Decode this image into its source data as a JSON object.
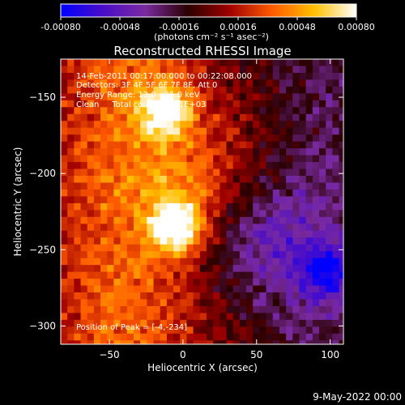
{
  "chart_data": {
    "type": "heatmap",
    "title": "Reconstructed RHESSI Image",
    "xlabel": "Heliocentric X (arcsec)",
    "ylabel": "Heliocentric Y (arcsec)",
    "xlim": [
      -83,
      109
    ],
    "ylim": [
      -312,
      -125
    ],
    "x_ticks": [
      -50,
      0,
      50,
      100
    ],
    "y_ticks": [
      -150,
      -200,
      -250,
      -300
    ],
    "colorbar": {
      "min": -0.0008,
      "max": 0.0008,
      "ticks": [
        "-0.00080",
        "-0.00048",
        "-0.00016",
        "0.00016",
        "0.00048",
        "0.00080"
      ],
      "units": "(photons cm⁻² s⁻¹ asec⁻²)",
      "colors": [
        "#0000ff",
        "#4a0dc8",
        "#7a2aa0",
        "#2a0000",
        "#a00000",
        "#ff5a00",
        "#ffc000",
        "#ffffff"
      ]
    },
    "sources": [
      {
        "x": -4,
        "y": -234,
        "peak": 0.0008
      },
      {
        "x": -12,
        "y": -158,
        "peak": 0.00065
      }
    ],
    "annotations": {
      "time_range": "14-Feb-2011 00:17:00.000 to 00:22:08.000",
      "detectors": "Detectors: 3F 4F 5F 6F 7F 8F, Att 0",
      "energy": "Energy Range: 12.0 - 25.0 keV",
      "method": "Clean     Total counts: 5.31E+03",
      "peak": "Position of Peak = [-4,-234]"
    },
    "peak_position": [
      -4,
      -234
    ]
  },
  "footer": {
    "date": "9-May-2022 00:00"
  }
}
